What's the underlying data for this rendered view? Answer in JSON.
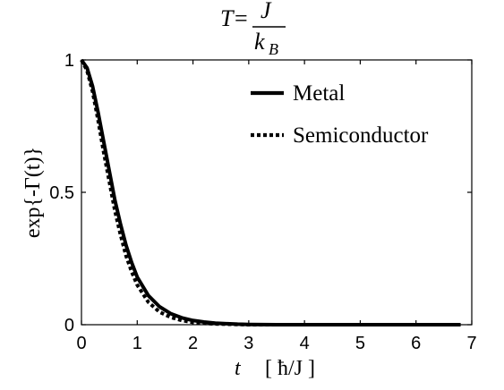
{
  "chart_data": {
    "type": "line",
    "title": {
      "lhs": "T",
      "eq": "=",
      "numerator": "J",
      "denominator": "k",
      "denominator_sub": "B"
    },
    "xlabel": {
      "var": "t",
      "units": "[ ħ/J ]"
    },
    "ylabel": "exp{-Γ(t)}",
    "xlim": [
      0,
      7
    ],
    "ylim": [
      0,
      1
    ],
    "xticks": [
      "0",
      "1",
      "2",
      "3",
      "4",
      "5",
      "6",
      "7"
    ],
    "yticks": [
      "0",
      "0.5",
      "1"
    ],
    "grid": false,
    "legend_position": "top-right",
    "series": [
      {
        "name": "Metal",
        "style": "solid",
        "color": "#000000",
        "x": [
          0,
          0.1,
          0.2,
          0.3,
          0.4,
          0.5,
          0.6,
          0.7,
          0.8,
          0.9,
          1.0,
          1.2,
          1.4,
          1.6,
          1.8,
          2.0,
          2.2,
          2.4,
          2.6,
          2.8,
          3.0,
          3.5,
          4.0,
          5.0,
          6.0,
          6.8
        ],
        "y": [
          1.0,
          0.97,
          0.9,
          0.8,
          0.69,
          0.58,
          0.47,
          0.38,
          0.3,
          0.235,
          0.18,
          0.11,
          0.068,
          0.042,
          0.026,
          0.016,
          0.01,
          0.006,
          0.004,
          0.002,
          0.001,
          0.0,
          0.0,
          0.0,
          0.0,
          0.0
        ]
      },
      {
        "name": "Semiconductor",
        "style": "dotted",
        "color": "#000000",
        "x": [
          0,
          0.1,
          0.2,
          0.3,
          0.4,
          0.5,
          0.6,
          0.7,
          0.8,
          0.9,
          1.0,
          1.2,
          1.4,
          1.6,
          1.8,
          2.0,
          2.2,
          2.4,
          2.6,
          2.8,
          3.0,
          3.5,
          4.0,
          5.0,
          6.0,
          6.8
        ],
        "y": [
          1.0,
          0.96,
          0.88,
          0.77,
          0.65,
          0.54,
          0.43,
          0.34,
          0.26,
          0.2,
          0.15,
          0.085,
          0.048,
          0.028,
          0.016,
          0.009,
          0.005,
          0.003,
          0.002,
          0.001,
          0.0,
          0.0,
          0.0,
          0.0,
          0.0,
          0.0
        ]
      }
    ]
  }
}
